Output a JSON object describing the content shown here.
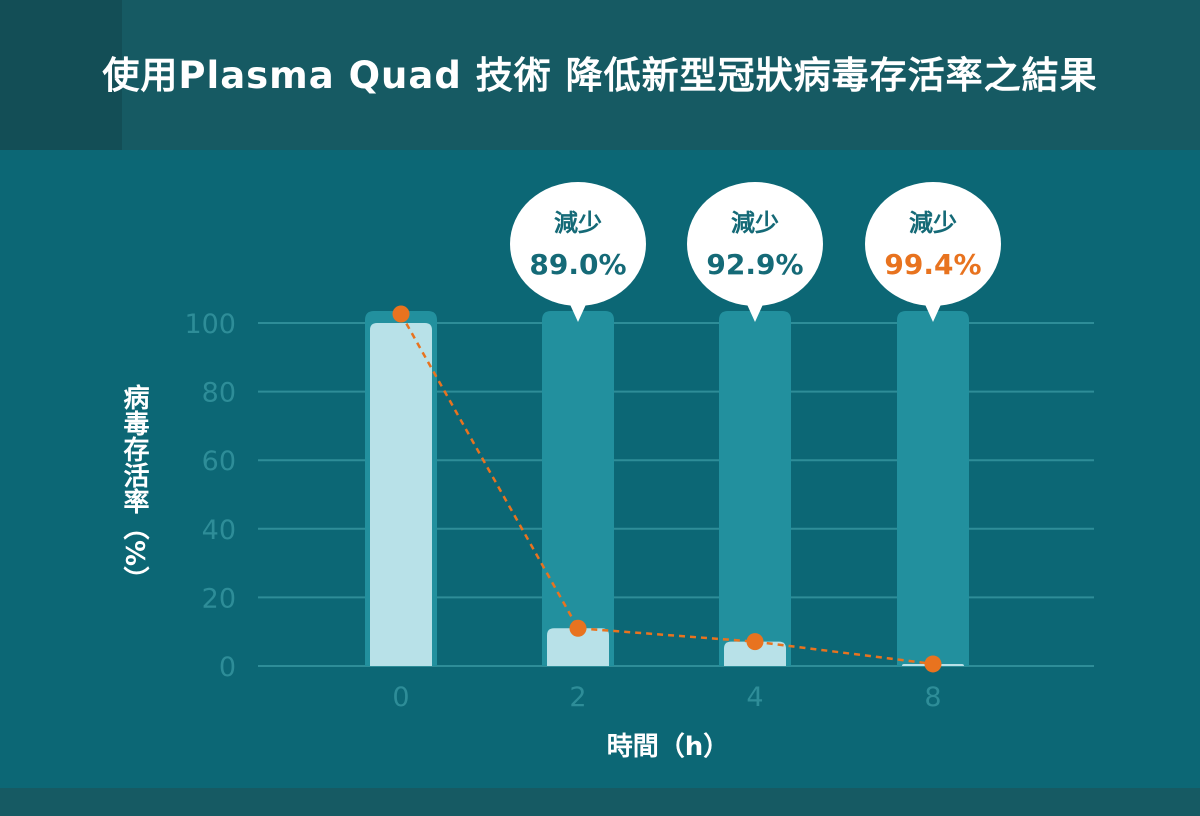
{
  "title": "使用Plasma Quad 技術  降低新型冠狀病毒存活率之結果",
  "colors": {
    "background": "#0c6775",
    "header": "#165a63",
    "bar_full": "#22909e",
    "bar_value": "#b8e1e8",
    "gridline": "#2e8d98",
    "trend": "#e8731f",
    "bubble_text": "#156a77",
    "highlight": "#e8731f"
  },
  "chart_data": {
    "type": "bar",
    "xlabel": "時間（h）",
    "ylabel": "病毒存活率（%）",
    "ylim": [
      0,
      100
    ],
    "yticks": [
      "0",
      "20",
      "40",
      "60",
      "80",
      "100"
    ],
    "categories": [
      "0",
      "2",
      "4",
      "8"
    ],
    "values": [
      100,
      11,
      7.1,
      0.6
    ],
    "trend_line": true,
    "annotations": [
      {
        "category": "2",
        "label": "減少",
        "value": "89.0%",
        "highlight": false
      },
      {
        "category": "4",
        "label": "減少",
        "value": "92.9%",
        "highlight": false
      },
      {
        "category": "8",
        "label": "減少",
        "value": "99.4%",
        "highlight": true
      }
    ]
  }
}
